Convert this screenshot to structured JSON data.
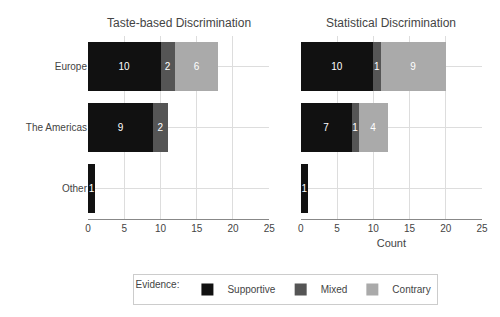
{
  "chart_data": [
    {
      "type": "bar",
      "title": "Taste-based Discrimination",
      "orientation": "horizontal",
      "stacked": true,
      "data_labels": true,
      "grid": true,
      "legend": "bottom",
      "legend_title": "Evidence:",
      "categories": [
        "Europe",
        "The Americas",
        "Other"
      ],
      "series": [
        {
          "name": "Supportive",
          "color": "#111111",
          "values": [
            10,
            9,
            1
          ]
        },
        {
          "name": "Mixed",
          "color": "#555555",
          "values": [
            2,
            2,
            0
          ]
        },
        {
          "name": "Contrary",
          "color": "#aaaaaa",
          "values": [
            6,
            0,
            0
          ]
        }
      ],
      "xlim": [
        0,
        25
      ],
      "xticks": [
        0,
        5,
        10,
        15,
        20,
        25
      ]
    },
    {
      "type": "bar",
      "title": "Statistical Discrimination",
      "x_label": "Count",
      "orientation": "horizontal",
      "stacked": true,
      "data_labels": true,
      "grid": true,
      "legend": "bottom",
      "legend_title": "Evidence:",
      "tick_labels": "x",
      "categories": [
        "Europe",
        "The Americas",
        "Other"
      ],
      "series": [
        {
          "name": "Supportive",
          "color": "#111111",
          "values": [
            10,
            7,
            1
          ]
        },
        {
          "name": "Mixed",
          "color": "#555555",
          "values": [
            1,
            1,
            0
          ]
        },
        {
          "name": "Contrary",
          "color": "#aaaaaa",
          "values": [
            9,
            4,
            0
          ]
        }
      ],
      "xlim": [
        0,
        25
      ],
      "xticks": [
        0,
        5,
        10,
        15,
        20,
        25
      ]
    }
  ]
}
